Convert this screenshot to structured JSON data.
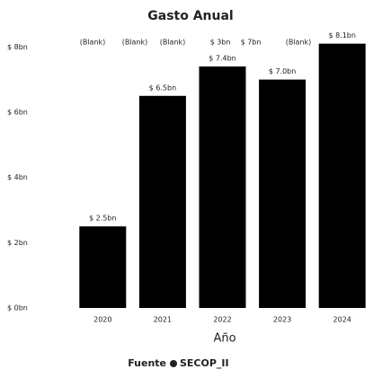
{
  "chart_data": {
    "type": "bar",
    "title": "Gasto Anual",
    "header_labels": [
      "(Blank)",
      "(Blank)",
      "(Blank)",
      "$ 3bn",
      "$ 7bn",
      "(Blank)"
    ],
    "categories": [
      "2020",
      "2021",
      "2022",
      "2023",
      "2024"
    ],
    "values": [
      2.5,
      6.5,
      7.4,
      7.0,
      8.1
    ],
    "value_labels": [
      "$ 2.5bn",
      "$ 6.5bn",
      "$ 7.4bn",
      "$ 7.0bn",
      "$ 8.1bn"
    ],
    "color": "#000000",
    "ylim": [
      0,
      8.2
    ],
    "yticks": [
      {
        "value": 0,
        "label": "$ 0bn"
      },
      {
        "value": 2,
        "label": "$ 2bn"
      },
      {
        "value": 4,
        "label": "$ 4bn"
      },
      {
        "value": 6,
        "label": "$ 6bn"
      },
      {
        "value": 8,
        "label": "$ 8bn"
      }
    ],
    "xlabel": "Año",
    "source_label": "Fuente",
    "source": "SECOP_II",
    "grid": false
  }
}
